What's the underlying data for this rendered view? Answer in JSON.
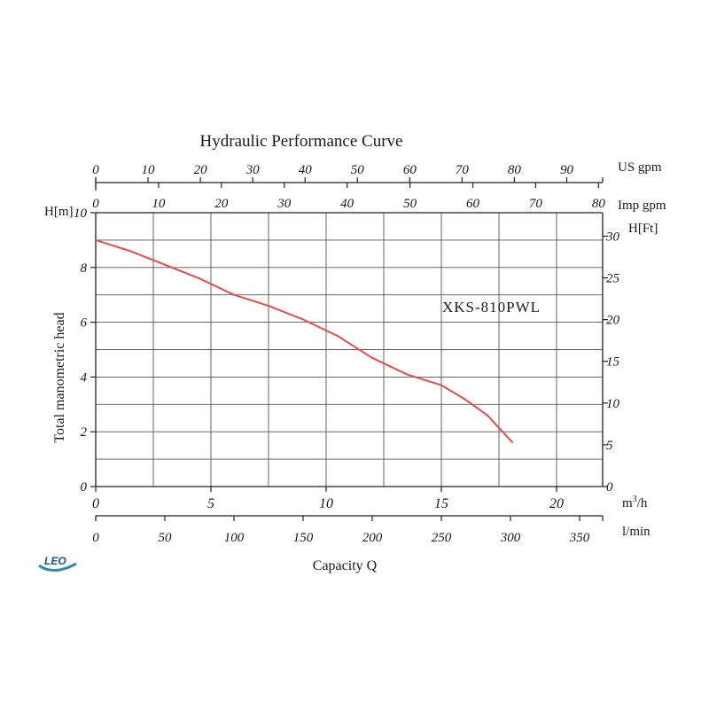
{
  "chart_data": {
    "type": "line",
    "title": "Hydraulic Performance Curve",
    "model_label": "XKS-810PWL",
    "brand": "LEO",
    "xlabel": "Capacity Q",
    "ylabel": "Total manometric head",
    "grid": true,
    "primary_x": {
      "unit": "m³/h",
      "unit_base": "m",
      "unit_sup": "3",
      "unit_tail": "/h",
      "range": [
        0,
        22
      ],
      "ticks": [
        "0",
        "5",
        "10",
        "15",
        "20"
      ]
    },
    "x_axes": [
      {
        "id": "usgpm",
        "unit": "US gpm",
        "ticks": [
          "0",
          "10",
          "20",
          "30",
          "40",
          "50",
          "60",
          "70",
          "80",
          "90"
        ],
        "values": [
          0,
          10,
          20,
          30,
          40,
          50,
          60,
          70,
          80,
          90
        ]
      },
      {
        "id": "impgpm",
        "unit": "Imp gpm",
        "ticks": [
          "0",
          "10",
          "20",
          "30",
          "40",
          "50",
          "60",
          "70",
          "80"
        ],
        "values": [
          0,
          10,
          20,
          30,
          40,
          50,
          60,
          70,
          80
        ]
      },
      {
        "id": "lmin",
        "unit": "l/min",
        "ticks": [
          "0",
          "50",
          "100",
          "150",
          "200",
          "250",
          "300",
          "350"
        ],
        "values": [
          0,
          50,
          100,
          150,
          200,
          250,
          300,
          350
        ]
      }
    ],
    "y_left": {
      "unit": "H[m]",
      "range": [
        0,
        10
      ],
      "ticks": [
        "0",
        "2",
        "4",
        "6",
        "8",
        "10"
      ],
      "values": [
        0,
        2,
        4,
        6,
        8,
        10
      ]
    },
    "y_right": {
      "unit": "H[Ft]",
      "ticks": [
        "0",
        "5",
        "10",
        "15",
        "20",
        "25",
        "30"
      ],
      "values": [
        0,
        5,
        10,
        15,
        20,
        25,
        30
      ]
    },
    "series": [
      {
        "color": "#e8494a",
        "x": [
          0,
          1.5,
          3.0,
          4.5,
          6.0,
          7.5,
          9.0,
          10.5,
          12.0,
          13.5,
          15.0,
          16.0,
          17.0,
          18.1
        ],
        "y": [
          9.0,
          8.6,
          8.1,
          7.6,
          7.0,
          6.6,
          6.1,
          5.5,
          4.7,
          4.1,
          3.7,
          3.2,
          2.6,
          1.6
        ]
      }
    ]
  }
}
